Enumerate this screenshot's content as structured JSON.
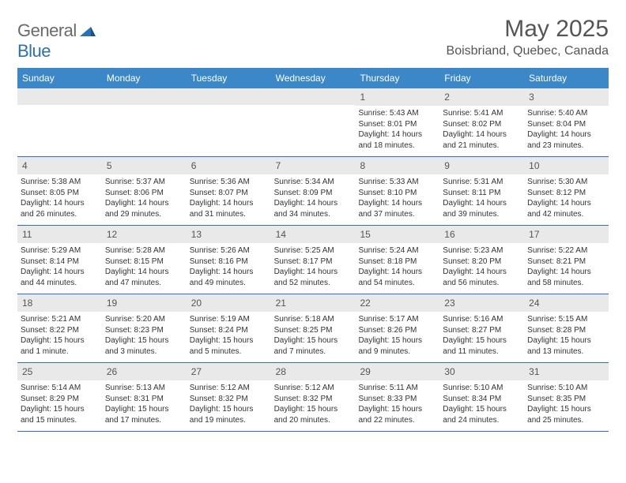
{
  "logo": {
    "word1": "General",
    "word2": "Blue"
  },
  "header": {
    "month_title": "May 2025",
    "location": "Boisbriand, Quebec, Canada"
  },
  "colors": {
    "header_bg": "#3b87c8",
    "header_text": "#ffffff",
    "row_divider": "#2a72b5",
    "day_band_bg": "#e9e9e9",
    "body_text": "#333333",
    "title_text": "#555555"
  },
  "weekdays": [
    "Sunday",
    "Monday",
    "Tuesday",
    "Wednesday",
    "Thursday",
    "Friday",
    "Saturday"
  ],
  "weeks": [
    [
      null,
      null,
      null,
      null,
      {
        "n": "1",
        "sr": "5:43 AM",
        "ss": "8:01 PM",
        "dl": "14 hours and 18 minutes."
      },
      {
        "n": "2",
        "sr": "5:41 AM",
        "ss": "8:02 PM",
        "dl": "14 hours and 21 minutes."
      },
      {
        "n": "3",
        "sr": "5:40 AM",
        "ss": "8:04 PM",
        "dl": "14 hours and 23 minutes."
      }
    ],
    [
      {
        "n": "4",
        "sr": "5:38 AM",
        "ss": "8:05 PM",
        "dl": "14 hours and 26 minutes."
      },
      {
        "n": "5",
        "sr": "5:37 AM",
        "ss": "8:06 PM",
        "dl": "14 hours and 29 minutes."
      },
      {
        "n": "6",
        "sr": "5:36 AM",
        "ss": "8:07 PM",
        "dl": "14 hours and 31 minutes."
      },
      {
        "n": "7",
        "sr": "5:34 AM",
        "ss": "8:09 PM",
        "dl": "14 hours and 34 minutes."
      },
      {
        "n": "8",
        "sr": "5:33 AM",
        "ss": "8:10 PM",
        "dl": "14 hours and 37 minutes."
      },
      {
        "n": "9",
        "sr": "5:31 AM",
        "ss": "8:11 PM",
        "dl": "14 hours and 39 minutes."
      },
      {
        "n": "10",
        "sr": "5:30 AM",
        "ss": "8:12 PM",
        "dl": "14 hours and 42 minutes."
      }
    ],
    [
      {
        "n": "11",
        "sr": "5:29 AM",
        "ss": "8:14 PM",
        "dl": "14 hours and 44 minutes."
      },
      {
        "n": "12",
        "sr": "5:28 AM",
        "ss": "8:15 PM",
        "dl": "14 hours and 47 minutes."
      },
      {
        "n": "13",
        "sr": "5:26 AM",
        "ss": "8:16 PM",
        "dl": "14 hours and 49 minutes."
      },
      {
        "n": "14",
        "sr": "5:25 AM",
        "ss": "8:17 PM",
        "dl": "14 hours and 52 minutes."
      },
      {
        "n": "15",
        "sr": "5:24 AM",
        "ss": "8:18 PM",
        "dl": "14 hours and 54 minutes."
      },
      {
        "n": "16",
        "sr": "5:23 AM",
        "ss": "8:20 PM",
        "dl": "14 hours and 56 minutes."
      },
      {
        "n": "17",
        "sr": "5:22 AM",
        "ss": "8:21 PM",
        "dl": "14 hours and 58 minutes."
      }
    ],
    [
      {
        "n": "18",
        "sr": "5:21 AM",
        "ss": "8:22 PM",
        "dl": "15 hours and 1 minute."
      },
      {
        "n": "19",
        "sr": "5:20 AM",
        "ss": "8:23 PM",
        "dl": "15 hours and 3 minutes."
      },
      {
        "n": "20",
        "sr": "5:19 AM",
        "ss": "8:24 PM",
        "dl": "15 hours and 5 minutes."
      },
      {
        "n": "21",
        "sr": "5:18 AM",
        "ss": "8:25 PM",
        "dl": "15 hours and 7 minutes."
      },
      {
        "n": "22",
        "sr": "5:17 AM",
        "ss": "8:26 PM",
        "dl": "15 hours and 9 minutes."
      },
      {
        "n": "23",
        "sr": "5:16 AM",
        "ss": "8:27 PM",
        "dl": "15 hours and 11 minutes."
      },
      {
        "n": "24",
        "sr": "5:15 AM",
        "ss": "8:28 PM",
        "dl": "15 hours and 13 minutes."
      }
    ],
    [
      {
        "n": "25",
        "sr": "5:14 AM",
        "ss": "8:29 PM",
        "dl": "15 hours and 15 minutes."
      },
      {
        "n": "26",
        "sr": "5:13 AM",
        "ss": "8:31 PM",
        "dl": "15 hours and 17 minutes."
      },
      {
        "n": "27",
        "sr": "5:12 AM",
        "ss": "8:32 PM",
        "dl": "15 hours and 19 minutes."
      },
      {
        "n": "28",
        "sr": "5:12 AM",
        "ss": "8:32 PM",
        "dl": "15 hours and 20 minutes."
      },
      {
        "n": "29",
        "sr": "5:11 AM",
        "ss": "8:33 PM",
        "dl": "15 hours and 22 minutes."
      },
      {
        "n": "30",
        "sr": "5:10 AM",
        "ss": "8:34 PM",
        "dl": "15 hours and 24 minutes."
      },
      {
        "n": "31",
        "sr": "5:10 AM",
        "ss": "8:35 PM",
        "dl": "15 hours and 25 minutes."
      }
    ]
  ],
  "labels": {
    "sunrise": "Sunrise: ",
    "sunset": "Sunset: ",
    "daylight": "Daylight: "
  }
}
